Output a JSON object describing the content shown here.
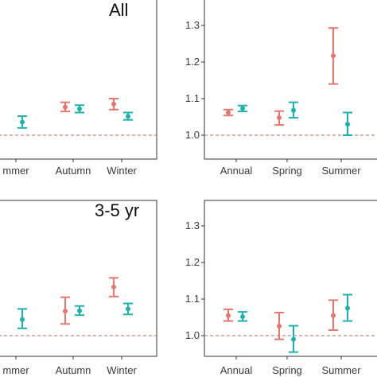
{
  "chart_data": [
    {
      "type": "scatter",
      "panel": "top-left",
      "label": "All",
      "categories": [
        "Summer",
        "Autumn",
        "Winter"
      ],
      "category_display": [
        "mmer",
        "Autumn",
        "Winter"
      ],
      "reference_line": 1.0,
      "ylim": [
        0.97,
        1.33
      ],
      "series": [
        {
          "color": "#E8756E",
          "values": [
            null,
            1.077,
            1.085
          ],
          "lower": [
            null,
            1.065,
            1.07
          ],
          "upper": [
            null,
            1.09,
            1.1
          ]
        },
        {
          "color": "#1AB3AE",
          "values": [
            1.036,
            1.072,
            1.052
          ],
          "lower": [
            1.02,
            1.062,
            1.042
          ],
          "upper": [
            1.052,
            1.082,
            1.062
          ]
        }
      ]
    },
    {
      "type": "scatter",
      "panel": "top-right",
      "label": "",
      "categories": [
        "Annual",
        "Spring",
        "Summer"
      ],
      "yticks": [
        "1.0",
        "1.1",
        "1.2",
        "1.3"
      ],
      "reference_line": 1.0,
      "ylim": [
        0.97,
        1.33
      ],
      "series": [
        {
          "color": "#E8756E",
          "values": [
            1.062,
            1.048,
            1.217
          ],
          "lower": [
            1.054,
            1.028,
            1.14
          ],
          "upper": [
            1.07,
            1.066,
            1.293
          ]
        },
        {
          "color": "#1AB3AE",
          "values": [
            1.073,
            1.068,
            1.03
          ],
          "lower": [
            1.065,
            1.048,
            1.0
          ],
          "upper": [
            1.081,
            1.09,
            1.062
          ]
        }
      ]
    },
    {
      "type": "scatter",
      "panel": "bottom-left",
      "label": "3-5 yr",
      "categories": [
        "Summer",
        "Autumn",
        "Winter"
      ],
      "category_display": [
        "mmer",
        "Autumn",
        "Winter"
      ],
      "reference_line": 1.0,
      "ylim": [
        0.97,
        1.33
      ],
      "series": [
        {
          "color": "#E8756E",
          "values": [
            null,
            1.067,
            1.133
          ],
          "lower": [
            null,
            1.032,
            1.107
          ],
          "upper": [
            null,
            1.105,
            1.158
          ]
        },
        {
          "color": "#1AB3AE",
          "values": [
            1.044,
            1.068,
            1.073
          ],
          "lower": [
            1.02,
            1.056,
            1.058
          ],
          "upper": [
            1.073,
            1.081,
            1.088
          ]
        }
      ]
    },
    {
      "type": "scatter",
      "panel": "bottom-right",
      "label": "",
      "categories": [
        "Annual",
        "Spring",
        "Summer"
      ],
      "yticks": [
        "1.0",
        "1.1",
        "1.2",
        "1.3"
      ],
      "reference_line": 1.0,
      "ylim": [
        0.97,
        1.33
      ],
      "series": [
        {
          "color": "#E8756E",
          "values": [
            1.055,
            1.026,
            1.055
          ],
          "lower": [
            1.04,
            0.99,
            1.015
          ],
          "upper": [
            1.072,
            1.063,
            1.097
          ]
        },
        {
          "color": "#1AB3AE",
          "values": [
            1.052,
            0.99,
            1.075
          ],
          "lower": [
            1.04,
            0.955,
            1.04
          ],
          "upper": [
            1.065,
            1.027,
            1.112
          ]
        }
      ]
    }
  ]
}
